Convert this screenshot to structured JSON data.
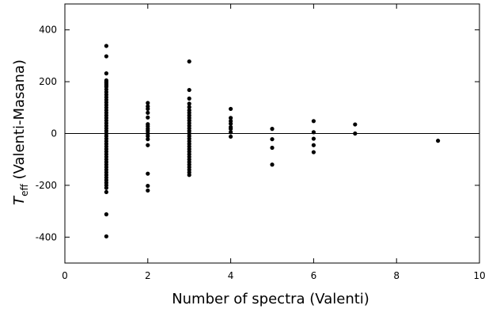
{
  "chart_data": {
    "type": "scatter",
    "xlabel": "Number of spectra (Valenti)",
    "ylabel_symbol": "T",
    "ylabel_subscript": "eff",
    "ylabel_rest": " (Valenti-Masana)",
    "xlim": [
      0,
      10
    ],
    "ylim": [
      -500,
      500
    ],
    "xticks": [
      0,
      2,
      4,
      6,
      8,
      10
    ],
    "yticks": [
      -400,
      -200,
      0,
      200,
      400
    ],
    "xtick_labels": [
      "0",
      "2",
      "4",
      "6",
      "8",
      "10"
    ],
    "ytick_labels": [
      "-400",
      "-200",
      "0",
      "200",
      "400"
    ],
    "zero_line": 0,
    "grid": false,
    "color": "#000000",
    "points": [
      {
        "x": 1,
        "y": 338
      },
      {
        "x": 1,
        "y": 298
      },
      {
        "x": 1,
        "y": 232
      },
      {
        "x": 1,
        "y": 205
      },
      {
        "x": 1,
        "y": 200
      },
      {
        "x": 1,
        "y": 195
      },
      {
        "x": 1,
        "y": 190
      },
      {
        "x": 1,
        "y": 185
      },
      {
        "x": 1,
        "y": 180
      },
      {
        "x": 1,
        "y": 170
      },
      {
        "x": 1,
        "y": 160
      },
      {
        "x": 1,
        "y": 150
      },
      {
        "x": 1,
        "y": 140
      },
      {
        "x": 1,
        "y": 130
      },
      {
        "x": 1,
        "y": 120
      },
      {
        "x": 1,
        "y": 110
      },
      {
        "x": 1,
        "y": 100
      },
      {
        "x": 1,
        "y": 90
      },
      {
        "x": 1,
        "y": 80
      },
      {
        "x": 1,
        "y": 70
      },
      {
        "x": 1,
        "y": 60
      },
      {
        "x": 1,
        "y": 50
      },
      {
        "x": 1,
        "y": 40
      },
      {
        "x": 1,
        "y": 30
      },
      {
        "x": 1,
        "y": 20
      },
      {
        "x": 1,
        "y": 10
      },
      {
        "x": 1,
        "y": 0
      },
      {
        "x": 1,
        "y": -10
      },
      {
        "x": 1,
        "y": -20
      },
      {
        "x": 1,
        "y": -30
      },
      {
        "x": 1,
        "y": -40
      },
      {
        "x": 1,
        "y": -50
      },
      {
        "x": 1,
        "y": -60
      },
      {
        "x": 1,
        "y": -70
      },
      {
        "x": 1,
        "y": -80
      },
      {
        "x": 1,
        "y": -90
      },
      {
        "x": 1,
        "y": -100
      },
      {
        "x": 1,
        "y": -110
      },
      {
        "x": 1,
        "y": -120
      },
      {
        "x": 1,
        "y": -130
      },
      {
        "x": 1,
        "y": -140
      },
      {
        "x": 1,
        "y": -150
      },
      {
        "x": 1,
        "y": -160
      },
      {
        "x": 1,
        "y": -170
      },
      {
        "x": 1,
        "y": -180
      },
      {
        "x": 1,
        "y": -190
      },
      {
        "x": 1,
        "y": -200
      },
      {
        "x": 1,
        "y": -210
      },
      {
        "x": 1,
        "y": -226
      },
      {
        "x": 1,
        "y": -312
      },
      {
        "x": 1,
        "y": -397
      },
      {
        "x": 2,
        "y": 118
      },
      {
        "x": 2,
        "y": 105
      },
      {
        "x": 2,
        "y": 95
      },
      {
        "x": 2,
        "y": 80
      },
      {
        "x": 2,
        "y": 62
      },
      {
        "x": 2,
        "y": 36
      },
      {
        "x": 2,
        "y": 28
      },
      {
        "x": 2,
        "y": 18
      },
      {
        "x": 2,
        "y": 10
      },
      {
        "x": 2,
        "y": 0
      },
      {
        "x": 2,
        "y": -10
      },
      {
        "x": 2,
        "y": -22
      },
      {
        "x": 2,
        "y": -45
      },
      {
        "x": 2,
        "y": -155
      },
      {
        "x": 2,
        "y": -202
      },
      {
        "x": 2,
        "y": -220
      },
      {
        "x": 3,
        "y": 278
      },
      {
        "x": 3,
        "y": 168
      },
      {
        "x": 3,
        "y": 135
      },
      {
        "x": 3,
        "y": 115
      },
      {
        "x": 3,
        "y": 102
      },
      {
        "x": 3,
        "y": 90
      },
      {
        "x": 3,
        "y": 80
      },
      {
        "x": 3,
        "y": 70
      },
      {
        "x": 3,
        "y": 60
      },
      {
        "x": 3,
        "y": 50
      },
      {
        "x": 3,
        "y": 40
      },
      {
        "x": 3,
        "y": 30
      },
      {
        "x": 3,
        "y": 20
      },
      {
        "x": 3,
        "y": 10
      },
      {
        "x": 3,
        "y": 0
      },
      {
        "x": 3,
        "y": -10
      },
      {
        "x": 3,
        "y": -20
      },
      {
        "x": 3,
        "y": -30
      },
      {
        "x": 3,
        "y": -40
      },
      {
        "x": 3,
        "y": -50
      },
      {
        "x": 3,
        "y": -60
      },
      {
        "x": 3,
        "y": -70
      },
      {
        "x": 3,
        "y": -80
      },
      {
        "x": 3,
        "y": -90
      },
      {
        "x": 3,
        "y": -100
      },
      {
        "x": 3,
        "y": -110
      },
      {
        "x": 3,
        "y": -120
      },
      {
        "x": 3,
        "y": -130
      },
      {
        "x": 3,
        "y": -140
      },
      {
        "x": 3,
        "y": -150
      },
      {
        "x": 3,
        "y": -160
      },
      {
        "x": 4,
        "y": 95
      },
      {
        "x": 4,
        "y": 60
      },
      {
        "x": 4,
        "y": 48
      },
      {
        "x": 4,
        "y": 38
      },
      {
        "x": 4,
        "y": 25
      },
      {
        "x": 4,
        "y": 18
      },
      {
        "x": 4,
        "y": 5
      },
      {
        "x": 4,
        "y": -12
      },
      {
        "x": 5,
        "y": 18
      },
      {
        "x": 5,
        "y": -22
      },
      {
        "x": 5,
        "y": -55
      },
      {
        "x": 5,
        "y": -120
      },
      {
        "x": 6,
        "y": 48
      },
      {
        "x": 6,
        "y": 5
      },
      {
        "x": 6,
        "y": -20
      },
      {
        "x": 6,
        "y": -45
      },
      {
        "x": 6,
        "y": -72
      },
      {
        "x": 7,
        "y": 35
      },
      {
        "x": 7,
        "y": 0
      },
      {
        "x": 9,
        "y": -28
      }
    ]
  }
}
